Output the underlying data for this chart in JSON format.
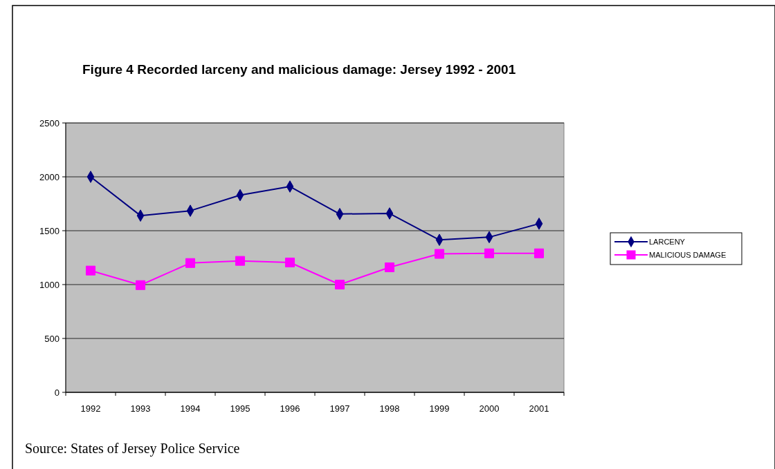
{
  "chart_data": {
    "type": "line",
    "title": "Figure 4 Recorded larceny and malicious damage: Jersey 1992 - 2001",
    "categories": [
      "1992",
      "1993",
      "1994",
      "1995",
      "1996",
      "1997",
      "1998",
      "1999",
      "2000",
      "2001"
    ],
    "series": [
      {
        "name": "LARCENY",
        "color": "#000080",
        "marker": "diamond",
        "values": [
          2000,
          1640,
          1685,
          1830,
          1910,
          1655,
          1660,
          1415,
          1440,
          1565
        ]
      },
      {
        "name": "MALICIOUS DAMAGE",
        "color": "#ff00ff",
        "marker": "square",
        "values": [
          1130,
          995,
          1200,
          1220,
          1205,
          1000,
          1160,
          1285,
          1290,
          1290
        ]
      }
    ],
    "ylim": [
      0,
      2500
    ],
    "yticks": [
      0,
      500,
      1000,
      1500,
      2000,
      2500
    ],
    "grid": "y",
    "legend": "right",
    "annotations": [
      "Source: States of Jersey Police Service"
    ]
  }
}
